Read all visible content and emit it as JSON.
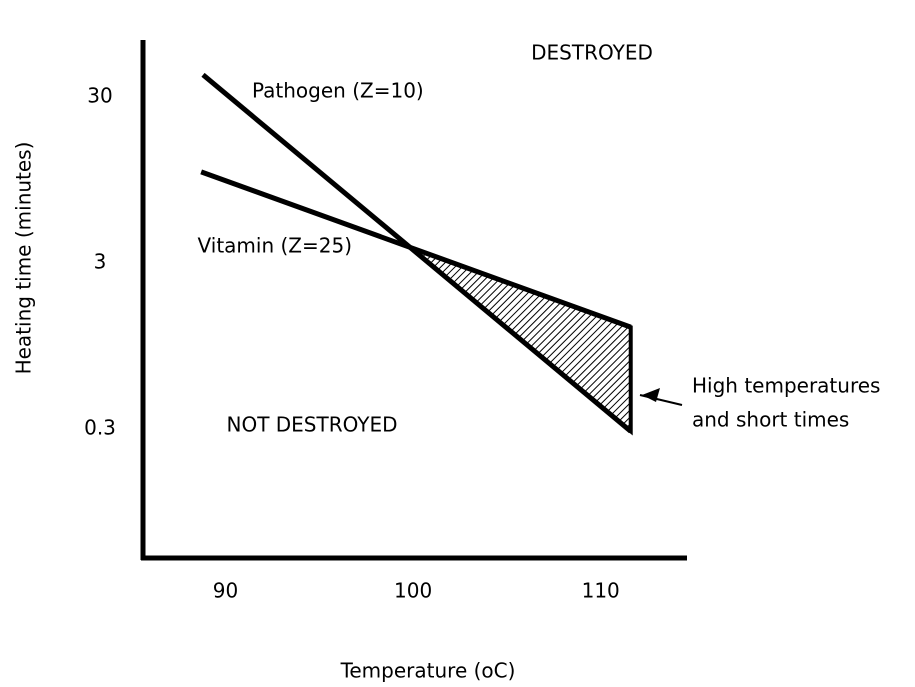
{
  "chart_data": {
    "type": "line",
    "xlabel": "Temperature (oC)",
    "ylabel": "Heating time (minutes)",
    "xlim": [
      85.6,
      114.6
    ],
    "ylim": [
      0.05,
      66
    ],
    "xticks": [
      90,
      100,
      110
    ],
    "yticks": [
      30,
      3,
      0.3
    ],
    "yscale": "log",
    "series": [
      {
        "name": "Pathogen (Z=10)",
        "color": "#000000",
        "x": [
          88.8,
          111.6
        ],
        "values": [
          40.7,
          0.29
        ]
      },
      {
        "name": "Vitamin (Z=25)",
        "color": "#000000",
        "x": [
          88.7,
          111.6
        ],
        "values": [
          10.6,
          1.23
        ]
      }
    ],
    "annotations": [
      "DESTROYED",
      "NOT DESTROYED",
      "High temperatures",
      "and short times"
    ]
  }
}
